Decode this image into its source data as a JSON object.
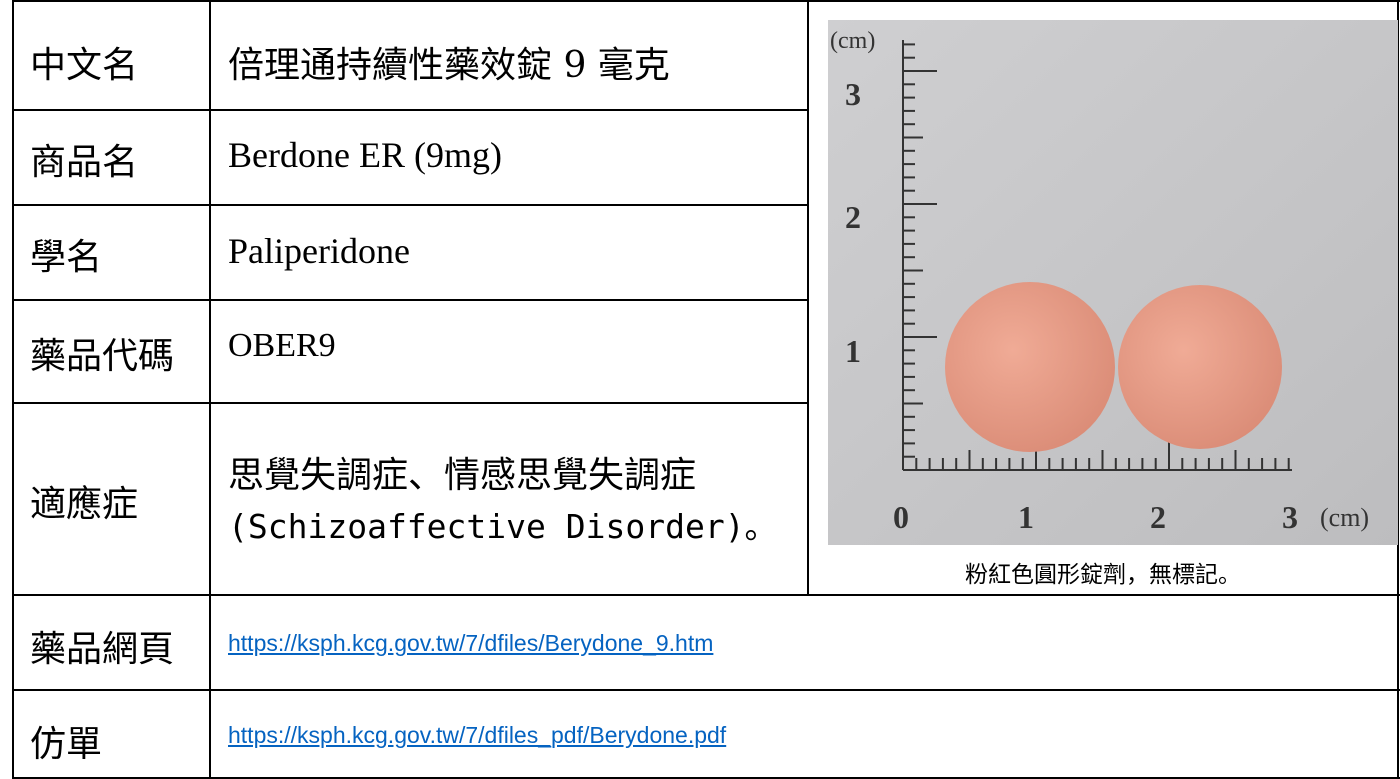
{
  "table": {
    "rows": [
      {
        "label": "中文名",
        "value": "倍理通持續性藥效錠 9 毫克"
      },
      {
        "label": "商品名",
        "value": "Berdone ER (9mg)"
      },
      {
        "label": "學名",
        "value": "Paliperidone"
      },
      {
        "label": "藥品代碼",
        "value": "OBER9"
      },
      {
        "label": "適應症",
        "value": [
          "思覺失調症、情感思覺失調症",
          "(Schizoaffective Disorder)。"
        ]
      },
      {
        "label": "藥品網頁",
        "value": "https://ksph.kcg.gov.tw/7/dfiles/Berydone_9.htm"
      },
      {
        "label": "仿單",
        "value": "https://ksph.kcg.gov.tw/7/dfiles_pdf/Berydone.pdf"
      }
    ]
  },
  "image": {
    "unit": "(cm)",
    "vertical_labels": [
      "3",
      "2",
      "1"
    ],
    "horizontal_labels": [
      "0",
      "1",
      "2",
      "3"
    ],
    "caption": "粉紅色圓形錠劑，無標記。"
  }
}
